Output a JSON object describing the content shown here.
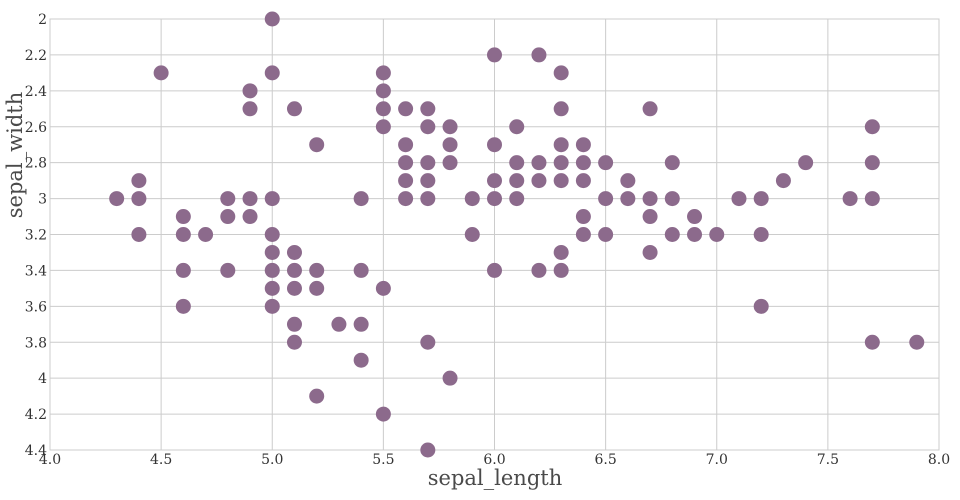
{
  "chart_data": {
    "type": "scatter",
    "title": "",
    "xlabel": "sepal_length",
    "ylabel": "sepal_width",
    "xlim": [
      4.0,
      8.0
    ],
    "ylim": [
      2.0,
      4.4
    ],
    "y_axis_inverted": true,
    "grid": true,
    "marker_color": "#8c6a8c",
    "x_ticks": [
      "4.0",
      "4.5",
      "5.0",
      "5.5",
      "6.0",
      "6.5",
      "7.0",
      "7.5",
      "8.0"
    ],
    "y_ticks": [
      "2",
      "2.2",
      "2.4",
      "2.6",
      "2.8",
      "3",
      "3.2",
      "3.4",
      "3.6",
      "3.8",
      "4",
      "4.2",
      "4.4"
    ],
    "points": [
      {
        "x": 5.0,
        "y": 2.0
      },
      {
        "x": 4.5,
        "y": 2.3
      },
      {
        "x": 5.0,
        "y": 2.3
      },
      {
        "x": 5.5,
        "y": 2.3
      },
      {
        "x": 6.3,
        "y": 2.3
      },
      {
        "x": 6.0,
        "y": 2.2
      },
      {
        "x": 6.2,
        "y": 2.2
      },
      {
        "x": 4.9,
        "y": 2.4
      },
      {
        "x": 5.5,
        "y": 2.4
      },
      {
        "x": 4.9,
        "y": 2.5
      },
      {
        "x": 5.1,
        "y": 2.5
      },
      {
        "x": 5.5,
        "y": 2.5
      },
      {
        "x": 5.6,
        "y": 2.5
      },
      {
        "x": 5.7,
        "y": 2.5
      },
      {
        "x": 6.3,
        "y": 2.5
      },
      {
        "x": 6.7,
        "y": 2.5
      },
      {
        "x": 5.5,
        "y": 2.6
      },
      {
        "x": 5.7,
        "y": 2.6
      },
      {
        "x": 5.8,
        "y": 2.6
      },
      {
        "x": 6.1,
        "y": 2.6
      },
      {
        "x": 7.7,
        "y": 2.6
      },
      {
        "x": 5.2,
        "y": 2.7
      },
      {
        "x": 5.6,
        "y": 2.7
      },
      {
        "x": 5.8,
        "y": 2.7
      },
      {
        "x": 6.0,
        "y": 2.7
      },
      {
        "x": 6.3,
        "y": 2.7
      },
      {
        "x": 6.4,
        "y": 2.7
      },
      {
        "x": 5.6,
        "y": 2.8
      },
      {
        "x": 5.7,
        "y": 2.8
      },
      {
        "x": 5.8,
        "y": 2.8
      },
      {
        "x": 6.1,
        "y": 2.8
      },
      {
        "x": 6.2,
        "y": 2.8
      },
      {
        "x": 6.3,
        "y": 2.8
      },
      {
        "x": 6.4,
        "y": 2.8
      },
      {
        "x": 6.5,
        "y": 2.8
      },
      {
        "x": 6.8,
        "y": 2.8
      },
      {
        "x": 7.4,
        "y": 2.8
      },
      {
        "x": 7.7,
        "y": 2.8
      },
      {
        "x": 4.4,
        "y": 2.9
      },
      {
        "x": 5.6,
        "y": 2.9
      },
      {
        "x": 5.7,
        "y": 2.9
      },
      {
        "x": 6.0,
        "y": 2.9
      },
      {
        "x": 6.1,
        "y": 2.9
      },
      {
        "x": 6.2,
        "y": 2.9
      },
      {
        "x": 6.3,
        "y": 2.9
      },
      {
        "x": 6.4,
        "y": 2.9
      },
      {
        "x": 6.6,
        "y": 2.9
      },
      {
        "x": 7.3,
        "y": 2.9
      },
      {
        "x": 4.3,
        "y": 3.0
      },
      {
        "x": 4.4,
        "y": 3.0
      },
      {
        "x": 4.8,
        "y": 3.0
      },
      {
        "x": 4.9,
        "y": 3.0
      },
      {
        "x": 5.0,
        "y": 3.0
      },
      {
        "x": 5.4,
        "y": 3.0
      },
      {
        "x": 5.6,
        "y": 3.0
      },
      {
        "x": 5.7,
        "y": 3.0
      },
      {
        "x": 5.9,
        "y": 3.0
      },
      {
        "x": 6.0,
        "y": 3.0
      },
      {
        "x": 6.1,
        "y": 3.0
      },
      {
        "x": 6.5,
        "y": 3.0
      },
      {
        "x": 6.6,
        "y": 3.0
      },
      {
        "x": 6.7,
        "y": 3.0
      },
      {
        "x": 6.8,
        "y": 3.0
      },
      {
        "x": 7.1,
        "y": 3.0
      },
      {
        "x": 7.2,
        "y": 3.0
      },
      {
        "x": 7.6,
        "y": 3.0
      },
      {
        "x": 7.7,
        "y": 3.0
      },
      {
        "x": 4.6,
        "y": 3.1
      },
      {
        "x": 4.8,
        "y": 3.1
      },
      {
        "x": 4.9,
        "y": 3.1
      },
      {
        "x": 6.4,
        "y": 3.1
      },
      {
        "x": 6.7,
        "y": 3.1
      },
      {
        "x": 6.9,
        "y": 3.1
      },
      {
        "x": 4.4,
        "y": 3.2
      },
      {
        "x": 4.6,
        "y": 3.2
      },
      {
        "x": 4.7,
        "y": 3.2
      },
      {
        "x": 5.0,
        "y": 3.2
      },
      {
        "x": 5.9,
        "y": 3.2
      },
      {
        "x": 6.4,
        "y": 3.2
      },
      {
        "x": 6.5,
        "y": 3.2
      },
      {
        "x": 6.8,
        "y": 3.2
      },
      {
        "x": 6.9,
        "y": 3.2
      },
      {
        "x": 7.0,
        "y": 3.2
      },
      {
        "x": 7.2,
        "y": 3.2
      },
      {
        "x": 5.0,
        "y": 3.3
      },
      {
        "x": 5.1,
        "y": 3.3
      },
      {
        "x": 6.3,
        "y": 3.3
      },
      {
        "x": 6.7,
        "y": 3.3
      },
      {
        "x": 4.6,
        "y": 3.4
      },
      {
        "x": 4.8,
        "y": 3.4
      },
      {
        "x": 5.0,
        "y": 3.4
      },
      {
        "x": 5.1,
        "y": 3.4
      },
      {
        "x": 5.2,
        "y": 3.4
      },
      {
        "x": 5.4,
        "y": 3.4
      },
      {
        "x": 6.0,
        "y": 3.4
      },
      {
        "x": 6.2,
        "y": 3.4
      },
      {
        "x": 6.3,
        "y": 3.4
      },
      {
        "x": 5.0,
        "y": 3.5
      },
      {
        "x": 5.1,
        "y": 3.5
      },
      {
        "x": 5.2,
        "y": 3.5
      },
      {
        "x": 5.5,
        "y": 3.5
      },
      {
        "x": 4.6,
        "y": 3.6
      },
      {
        "x": 5.0,
        "y": 3.6
      },
      {
        "x": 7.2,
        "y": 3.6
      },
      {
        "x": 5.1,
        "y": 3.7
      },
      {
        "x": 5.3,
        "y": 3.7
      },
      {
        "x": 5.4,
        "y": 3.7
      },
      {
        "x": 5.1,
        "y": 3.8
      },
      {
        "x": 5.7,
        "y": 3.8
      },
      {
        "x": 7.7,
        "y": 3.8
      },
      {
        "x": 7.9,
        "y": 3.8
      },
      {
        "x": 5.4,
        "y": 3.9
      },
      {
        "x": 5.8,
        "y": 4.0
      },
      {
        "x": 5.2,
        "y": 4.1
      },
      {
        "x": 5.5,
        "y": 4.2
      },
      {
        "x": 5.7,
        "y": 4.4
      }
    ]
  }
}
